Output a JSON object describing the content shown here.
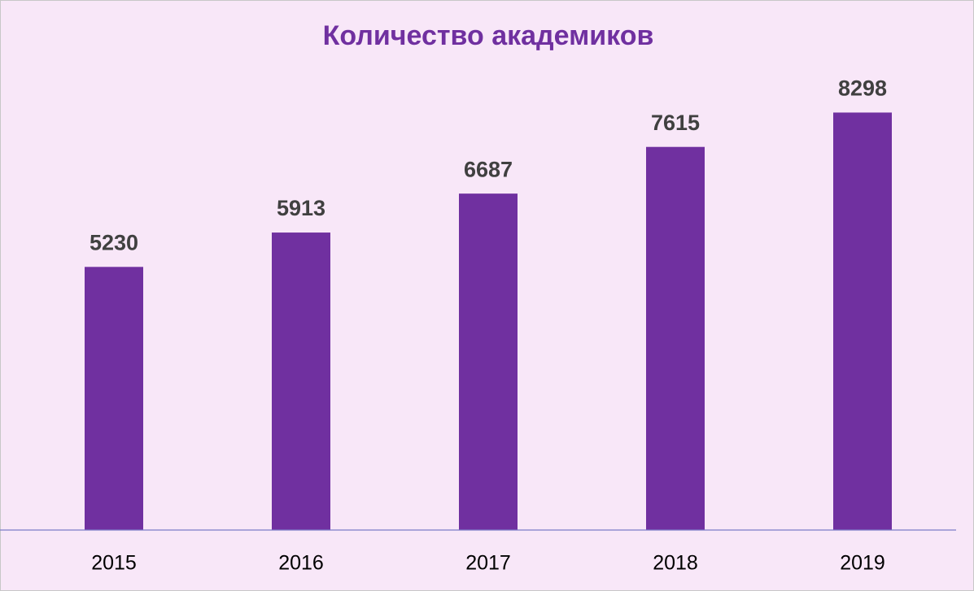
{
  "chart_data": {
    "type": "bar",
    "title": "Количество академиков",
    "categories": [
      "2015",
      "2016",
      "2017",
      "2018",
      "2019"
    ],
    "values": [
      5230,
      5913,
      6687,
      7615,
      8298
    ],
    "color": "#7030a0",
    "ylim": [
      0,
      9000
    ]
  }
}
